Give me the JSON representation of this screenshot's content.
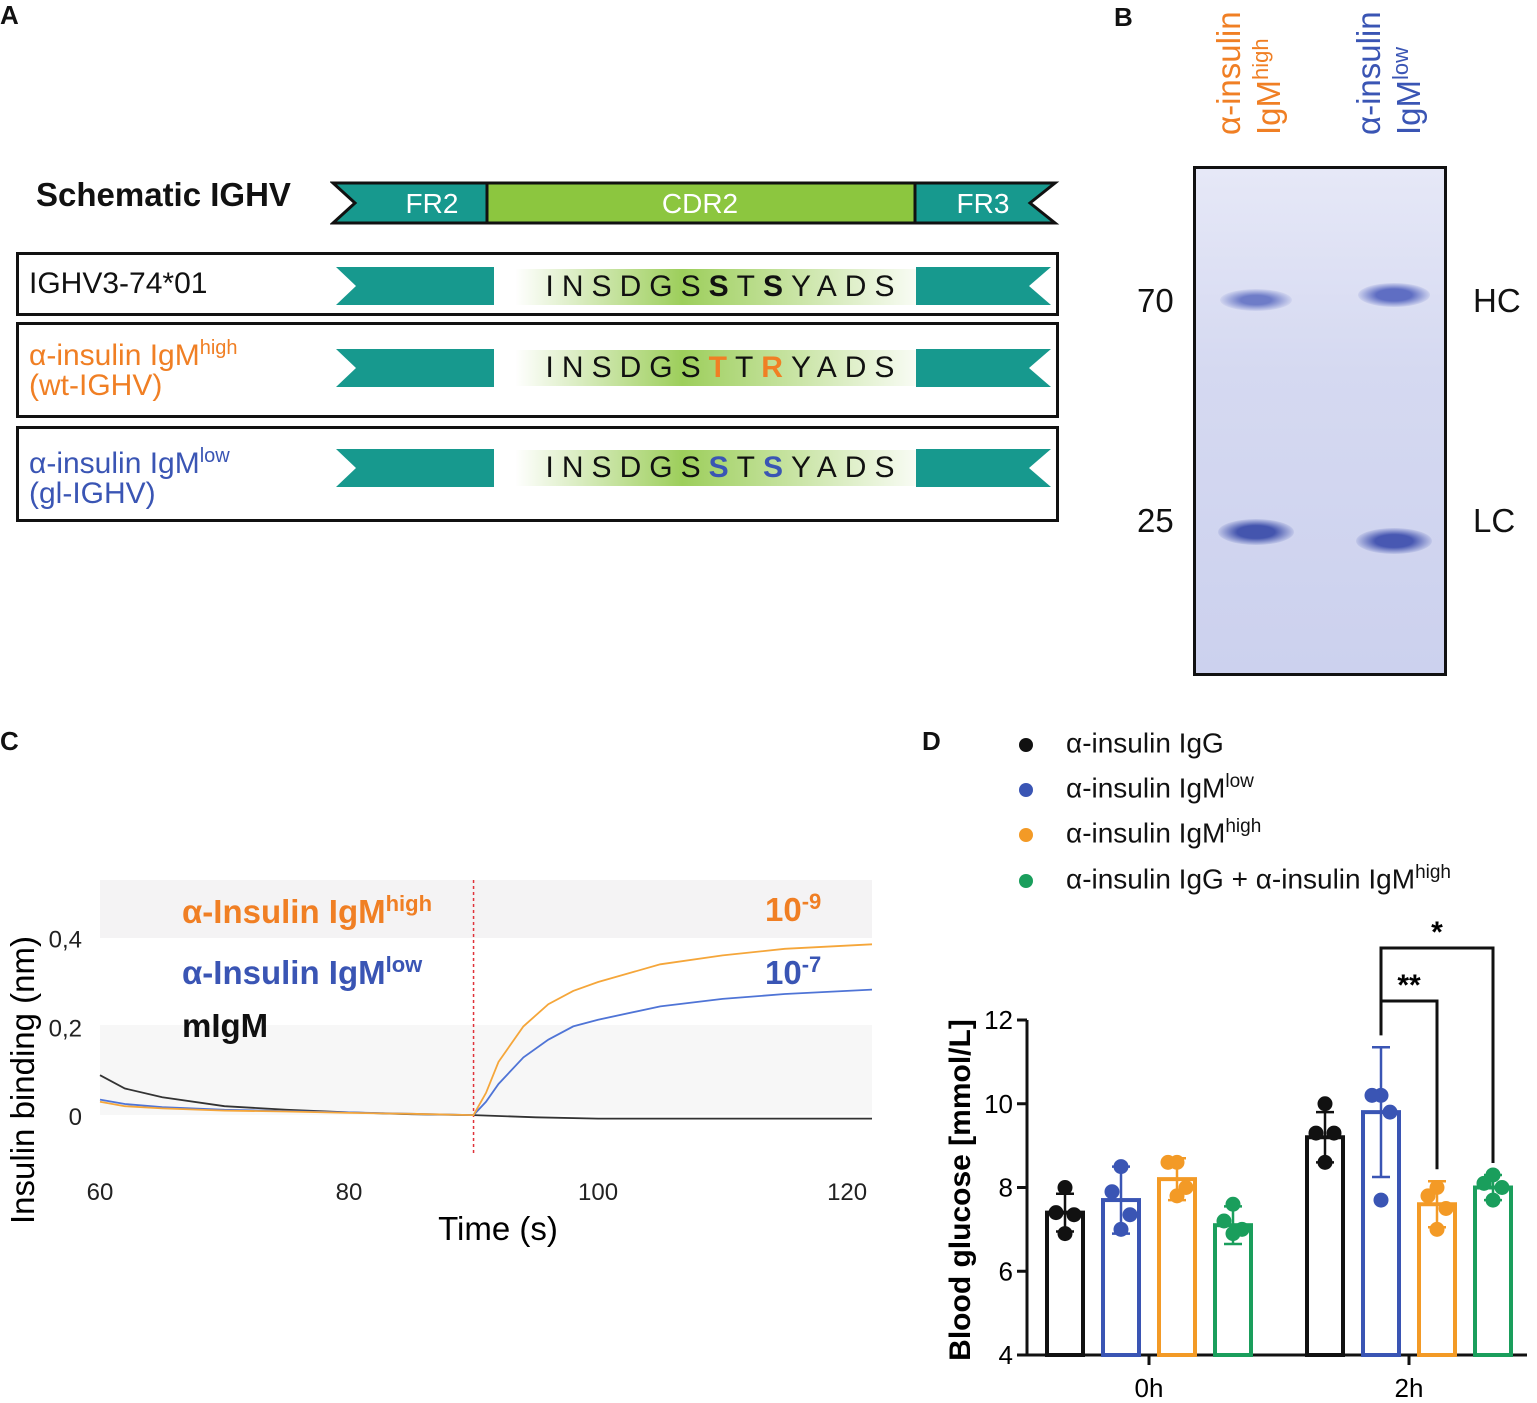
{
  "panels": {
    "a": "A",
    "b": "B",
    "c": "C",
    "d": "D"
  },
  "colors": {
    "orange": "#F07F24",
    "blue": "#3A55B4",
    "teal": "#17998E",
    "green_cdr": "#8CC63F",
    "black": "#111111",
    "green_dot": "#1A9E5C",
    "gel": "#CFD3EE",
    "band": "#5161B8"
  },
  "panel_a": {
    "title": "Schematic IGHV",
    "segments": {
      "fr2": "FR2",
      "cdr2": "CDR2",
      "fr3": "FR3"
    },
    "rows": [
      {
        "line1": "IGHV3-74*01",
        "line2": "",
        "sup": "",
        "residues": [
          "I",
          "N",
          "S",
          "D",
          "G",
          "S",
          "S",
          "T",
          "S",
          "Y",
          "A",
          "D",
          "S"
        ],
        "highlight_color": "black"
      },
      {
        "line1": "α-insulin IgM",
        "sup": "high",
        "line2": "(wt-IGHV)",
        "residues": [
          "I",
          "N",
          "S",
          "D",
          "G",
          "S",
          "T",
          "T",
          "R",
          "Y",
          "A",
          "D",
          "S"
        ],
        "highlight_color": "orange"
      },
      {
        "line1": "α-insulin IgM",
        "sup": "low",
        "line2": "(gl-IGHV)",
        "residues": [
          "I",
          "N",
          "S",
          "D",
          "G",
          "S",
          "S",
          "T",
          "S",
          "Y",
          "A",
          "D",
          "S"
        ],
        "highlight_color": "blue"
      }
    ],
    "highlight_positions": [
      6,
      8
    ]
  },
  "panel_b": {
    "lane_labels": [
      {
        "l1": "α-insulin",
        "l2": "IgM",
        "sup": "high"
      },
      {
        "l1": "α-insulin",
        "l2": "IgM",
        "sup": "low"
      }
    ],
    "markers": [
      "70",
      "25"
    ],
    "bands": [
      "HC",
      "LC"
    ]
  },
  "chart_data": [
    {
      "type": "line",
      "title": "",
      "xlabel": "Time (s)",
      "ylabel": "Insulin binding (nm)",
      "xlim": [
        60,
        122
      ],
      "ylim": [
        -0.09,
        0.53
      ],
      "xticks": [
        "60",
        "80",
        "100",
        "120"
      ],
      "yticks": [
        "0",
        "0,2",
        "0,4"
      ],
      "vline_x": 90,
      "series": [
        {
          "name": "α-Insulin IgM",
          "sup": "high",
          "color": "orange",
          "kd_base": "10",
          "kd_exp": "-9",
          "x": [
            60,
            62,
            65,
            70,
            75,
            80,
            85,
            90,
            91,
            92,
            94,
            96,
            98,
            100,
            105,
            110,
            115,
            122
          ],
          "y": [
            0.03,
            0.02,
            0.015,
            0.01,
            0.008,
            0.005,
            0.003,
            0.0,
            0.05,
            0.12,
            0.2,
            0.25,
            0.28,
            0.3,
            0.34,
            0.36,
            0.375,
            0.385
          ]
        },
        {
          "name": "α-Insulin IgM",
          "sup": "low",
          "color": "blue",
          "kd_base": "10",
          "kd_exp": "-7",
          "x": [
            60,
            62,
            65,
            70,
            75,
            80,
            85,
            90,
            91,
            92,
            94,
            96,
            98,
            100,
            105,
            110,
            115,
            122
          ],
          "y": [
            0.035,
            0.025,
            0.018,
            0.012,
            0.009,
            0.006,
            0.003,
            0.0,
            0.03,
            0.07,
            0.13,
            0.17,
            0.2,
            0.215,
            0.245,
            0.262,
            0.273,
            0.283
          ]
        },
        {
          "name": "mIgM",
          "sup": "",
          "color": "black",
          "x": [
            60,
            62,
            65,
            70,
            75,
            80,
            85,
            90,
            95,
            100,
            110,
            122
          ],
          "y": [
            0.09,
            0.06,
            0.04,
            0.02,
            0.012,
            0.006,
            0.002,
            0.0,
            -0.005,
            -0.008,
            -0.008,
            -0.008
          ]
        }
      ]
    },
    {
      "type": "bar",
      "title": "",
      "xlabel": "",
      "ylabel": "Blood glucose [mmol/L]",
      "ylim": [
        4,
        12
      ],
      "yticks": [
        4,
        6,
        8,
        10,
        12
      ],
      "categories": [
        "0h",
        "2h"
      ],
      "legend": [
        {
          "name": "α-insulin IgG",
          "sup": "",
          "color": "black"
        },
        {
          "name": "α-insulin IgM",
          "sup": "low",
          "color": "blue"
        },
        {
          "name": "α-insulin IgM",
          "sup": "high",
          "color": "orange"
        },
        {
          "name": "α-insulin IgG + α-insulin IgM",
          "sup": "high",
          "color": "green"
        }
      ],
      "series": [
        {
          "name": "α-insulin IgG",
          "color": "black",
          "values": [
            7.4,
            9.2
          ],
          "sd": [
            0.45,
            0.6
          ],
          "points": [
            [
              8.0,
              7.4,
              7.35,
              6.9
            ],
            [
              10.0,
              9.3,
              9.3,
              8.6
            ]
          ]
        },
        {
          "name": "α-insulin IgM low",
          "color": "blue",
          "values": [
            7.7,
            9.8
          ],
          "sd": [
            0.8,
            1.55
          ],
          "points": [
            [
              8.5,
              7.9,
              7.35,
              7.0
            ],
            [
              10.2,
              10.2,
              9.8,
              7.7
            ]
          ]
        },
        {
          "name": "α-insulin IgM high",
          "color": "orange",
          "values": [
            8.2,
            7.6
          ],
          "sd": [
            0.5,
            0.55
          ],
          "points": [
            [
              8.6,
              8.6,
              8.0,
              7.8
            ],
            [
              8.0,
              7.8,
              7.5,
              7.0
            ]
          ]
        },
        {
          "name": "α-insulin IgG + α-insulin IgM high",
          "color": "green",
          "values": [
            7.1,
            8.0
          ],
          "sd": [
            0.45,
            0.3
          ],
          "points": [
            [
              7.6,
              7.2,
              7.0,
              6.9
            ],
            [
              8.3,
              8.1,
              8.0,
              7.7
            ]
          ]
        }
      ],
      "significance": [
        {
          "label": "**",
          "category": "2h",
          "from_series": 1,
          "to_series": 2
        },
        {
          "label": "*",
          "category": "2h",
          "from_series": 1,
          "to_series": 3
        }
      ]
    }
  ]
}
